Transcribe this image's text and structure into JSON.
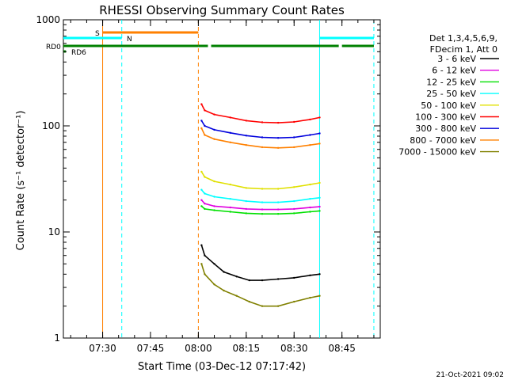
{
  "chart_data": {
    "type": "line",
    "title": "RHESSI Observing Summary Count Rates",
    "xlabel": "Start Time (03-Dec-12 07:17:42)",
    "ylabel": "Count Rate (s⁻¹ detector⁻¹)",
    "ylim": [
      1,
      1000
    ],
    "yscale": "log",
    "xlim": [
      "07:17:42",
      "08:57:00"
    ],
    "yticks": [
      "1",
      "10",
      "100",
      "1000"
    ],
    "xticks": [
      "07:30",
      "07:45",
      "08:00",
      "08:15",
      "08:30",
      "08:45"
    ],
    "legend_header": [
      "Det 1,3,4,5,6,9,",
      "FDecim 1, Att 0"
    ],
    "legend_position": "right",
    "date_stamp": "21-Oct-2021 09:02",
    "series": [
      {
        "name": "3 - 6 keV",
        "color": "#000000",
        "x": [
          "08:01",
          "08:02",
          "08:05",
          "08:08",
          "08:12",
          "08:16",
          "08:20",
          "08:25",
          "08:30",
          "08:35",
          "08:38"
        ],
        "values": [
          7.5,
          6.0,
          5.0,
          4.2,
          3.8,
          3.5,
          3.5,
          3.6,
          3.7,
          3.9,
          4.0
        ]
      },
      {
        "name": "6 - 12 keV",
        "color": "#e000e0",
        "x": [
          "08:01",
          "08:02",
          "08:05",
          "08:10",
          "08:15",
          "08:20",
          "08:25",
          "08:30",
          "08:35",
          "08:38"
        ],
        "values": [
          20,
          18.5,
          17.5,
          17.0,
          16.5,
          16.3,
          16.3,
          16.5,
          17.0,
          17.3
        ]
      },
      {
        "name": "12 - 25 keV",
        "color": "#00e000",
        "x": [
          "08:01",
          "08:02",
          "08:05",
          "08:10",
          "08:15",
          "08:20",
          "08:25",
          "08:30",
          "08:35",
          "08:38"
        ],
        "values": [
          17.5,
          16.5,
          16.0,
          15.5,
          15.0,
          14.8,
          14.8,
          15.0,
          15.5,
          15.8
        ]
      },
      {
        "name": "25 - 50 keV",
        "color": "#00ffff",
        "x": [
          "08:01",
          "08:02",
          "08:05",
          "08:10",
          "08:15",
          "08:20",
          "08:25",
          "08:30",
          "08:35",
          "08:38"
        ],
        "values": [
          25,
          23,
          21.5,
          20.5,
          19.5,
          19.0,
          19.0,
          19.5,
          20.5,
          21.0
        ]
      },
      {
        "name": "50 - 100 keV",
        "color": "#e0e000",
        "x": [
          "08:01",
          "08:02",
          "08:05",
          "08:10",
          "08:15",
          "08:20",
          "08:25",
          "08:30",
          "08:35",
          "08:38"
        ],
        "values": [
          37,
          33,
          30,
          28,
          26,
          25.5,
          25.5,
          26.5,
          28,
          29
        ]
      },
      {
        "name": "100 - 300 keV",
        "color": "#ff0000",
        "x": [
          "08:01",
          "08:02",
          "08:05",
          "08:10",
          "08:15",
          "08:20",
          "08:25",
          "08:30",
          "08:35",
          "08:38"
        ],
        "values": [
          160,
          140,
          128,
          120,
          112,
          108,
          107,
          109,
          115,
          120
        ]
      },
      {
        "name": "300 - 800 keV",
        "color": "#0000dd",
        "x": [
          "08:01",
          "08:02",
          "08:05",
          "08:10",
          "08:15",
          "08:20",
          "08:25",
          "08:30",
          "08:35",
          "08:38"
        ],
        "values": [
          112,
          100,
          92,
          86,
          81,
          78,
          77,
          78,
          82,
          85
        ]
      },
      {
        "name": "800 - 7000 keV",
        "color": "#ff8000",
        "x": [
          "08:01",
          "08:02",
          "08:05",
          "08:10",
          "08:15",
          "08:20",
          "08:25",
          "08:30",
          "08:35",
          "08:38"
        ],
        "values": [
          95,
          82,
          75,
          70,
          66,
          63,
          62,
          63,
          66,
          68
        ]
      },
      {
        "name": "7000 - 15000 keV",
        "color": "#808000",
        "x": [
          "08:01",
          "08:02",
          "08:05",
          "08:08",
          "08:12",
          "08:16",
          "08:20",
          "08:25",
          "08:30",
          "08:35",
          "08:38"
        ],
        "values": [
          5.0,
          4.0,
          3.2,
          2.8,
          2.5,
          2.2,
          2.0,
          2.0,
          2.2,
          2.4,
          2.5
        ]
      }
    ],
    "state_bars": [
      {
        "label": "S",
        "color": "#ff8000",
        "segments": [
          [
            "07:30",
            "08:00"
          ]
        ]
      },
      {
        "label": "N",
        "color": "#00ffff",
        "segments": [
          [
            "07:17:42",
            "07:36"
          ],
          [
            "08:38",
            "08:55"
          ]
        ]
      },
      {
        "label": "RD0",
        "color": "#008000",
        "segments": [
          [
            "07:17:42",
            "08:00"
          ],
          [
            "08:00",
            "08:03"
          ],
          [
            "08:04",
            "08:44"
          ],
          [
            "08:45",
            "08:55"
          ]
        ]
      },
      {
        "label": "RD6",
        "color": "#008000",
        "segments": [
          [
            "07:17:42",
            "07:18:30"
          ]
        ]
      }
    ],
    "vertical_markers": [
      {
        "x": "07:30",
        "color": "#ff8000",
        "style": "solid"
      },
      {
        "x": "07:36",
        "color": "#00ffff",
        "style": "dashed"
      },
      {
        "x": "08:00",
        "color": "#ff8000",
        "style": "dashed"
      },
      {
        "x": "08:38",
        "color": "#00ffff",
        "style": "solid"
      },
      {
        "x": "08:55",
        "color": "#00ffff",
        "style": "dashed"
      }
    ]
  }
}
